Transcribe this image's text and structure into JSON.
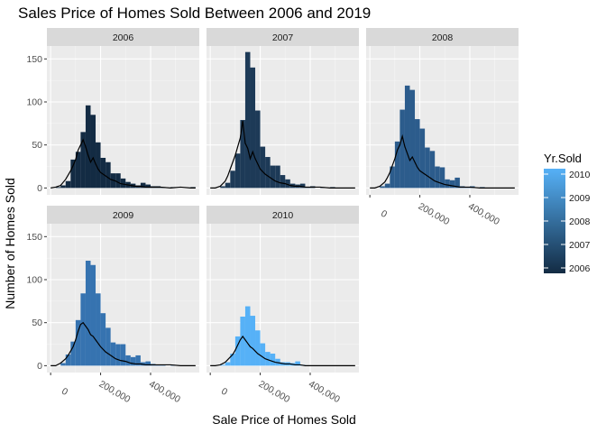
{
  "chart_data": {
    "type": "histogram",
    "title": "Sales Price of Homes Sold Between 2006 and 2019",
    "xlabel": "Sale Price of Homes Sold",
    "ylabel": "Number of Homes Sold",
    "xlim": [
      -15000,
      595000
    ],
    "ylim": [
      -8,
      165
    ],
    "x_ticks": [
      0,
      200000,
      400000
    ],
    "x_tick_labels": [
      "0",
      "200,000",
      "400,000"
    ],
    "y_ticks": [
      0,
      50,
      100,
      150
    ],
    "y_tick_labels": [
      "0",
      "50",
      "100",
      "150"
    ],
    "bin_width": 20000,
    "bin_starts": [
      0,
      20000,
      40000,
      60000,
      80000,
      100000,
      120000,
      140000,
      160000,
      180000,
      200000,
      220000,
      240000,
      260000,
      280000,
      300000,
      320000,
      340000,
      360000,
      380000,
      400000,
      420000,
      440000,
      460000,
      480000,
      500000,
      520000,
      540000,
      560000
    ],
    "legend": {
      "title": "Yr.Sold",
      "labels": [
        "2010",
        "2009",
        "2008",
        "2007",
        "2006"
      ],
      "values": [
        2010,
        2009,
        2008,
        2007,
        2006
      ],
      "position": "right",
      "gradient_low": "#132b43",
      "gradient_high": "#56b1f7"
    },
    "grid": true,
    "panels": [
      {
        "label": "2006",
        "fill": "#132b43",
        "counts": [
          0,
          1,
          3,
          8,
          33,
          42,
          65,
          96,
          85,
          53,
          35,
          30,
          17,
          17,
          11,
          7,
          5,
          3,
          6,
          4,
          2,
          2,
          1,
          0,
          1,
          0,
          0,
          0,
          1
        ],
        "density_x": [
          0,
          20000,
          40000,
          60000,
          70000,
          80000,
          90000,
          100000,
          110000,
          120000,
          130000,
          140000,
          150000,
          160000,
          170000,
          180000,
          190000,
          200000,
          220000,
          240000,
          260000,
          280000,
          300000,
          320000,
          340000,
          360000,
          380000,
          400000,
          440000,
          480000,
          520000,
          560000,
          580000
        ],
        "density_y": [
          0,
          1,
          3,
          10,
          15,
          20,
          26,
          33,
          44,
          50,
          56,
          48,
          38,
          30,
          35,
          28,
          22,
          18,
          14,
          10,
          8,
          5,
          4,
          3,
          2,
          2,
          1,
          1,
          1,
          0,
          1,
          0,
          0
        ]
      },
      {
        "label": "2007",
        "fill": "#1d3a57",
        "counts": [
          0,
          0,
          2,
          6,
          20,
          40,
          79,
          158,
          140,
          90,
          48,
          36,
          26,
          26,
          15,
          10,
          5,
          4,
          5,
          1,
          2,
          0,
          1,
          0,
          1,
          0,
          0,
          0,
          0
        ],
        "density_x": [
          0,
          20000,
          40000,
          60000,
          70000,
          80000,
          90000,
          100000,
          110000,
          120000,
          130000,
          140000,
          150000,
          160000,
          170000,
          180000,
          190000,
          200000,
          220000,
          240000,
          260000,
          280000,
          300000,
          320000,
          340000,
          360000,
          380000,
          400000,
          440000,
          480000,
          520000,
          560000,
          580000
        ],
        "density_y": [
          0,
          0,
          2,
          8,
          14,
          22,
          30,
          38,
          48,
          58,
          78,
          52,
          46,
          34,
          42,
          34,
          28,
          22,
          16,
          12,
          8,
          6,
          5,
          3,
          2,
          2,
          1,
          1,
          1,
          0,
          0,
          0,
          0
        ]
      },
      {
        "label": "2008",
        "fill": "#2c5c8c",
        "counts": [
          0,
          0,
          2,
          5,
          25,
          54,
          91,
          119,
          114,
          80,
          69,
          47,
          43,
          25,
          24,
          10,
          9,
          12,
          2,
          1,
          2,
          0,
          1,
          0,
          0,
          0,
          0,
          0,
          0
        ],
        "density_x": [
          0,
          20000,
          40000,
          60000,
          70000,
          80000,
          90000,
          100000,
          110000,
          120000,
          130000,
          140000,
          150000,
          160000,
          170000,
          180000,
          190000,
          200000,
          220000,
          240000,
          260000,
          280000,
          300000,
          320000,
          340000,
          360000,
          380000,
          400000,
          440000,
          480000,
          520000,
          560000,
          580000
        ],
        "density_y": [
          0,
          0,
          2,
          7,
          12,
          18,
          26,
          34,
          44,
          50,
          60,
          48,
          40,
          32,
          36,
          30,
          24,
          20,
          16,
          12,
          8,
          6,
          4,
          3,
          2,
          1,
          1,
          1,
          0,
          0,
          0,
          0,
          0
        ]
      },
      {
        "label": "2009",
        "fill": "#3673b0",
        "counts": [
          0,
          0,
          3,
          13,
          28,
          53,
          84,
          122,
          117,
          84,
          61,
          44,
          27,
          25,
          25,
          12,
          10,
          12,
          4,
          5,
          2,
          1,
          1,
          0,
          1,
          0,
          0,
          0,
          0
        ],
        "density_x": [
          0,
          20000,
          40000,
          60000,
          70000,
          80000,
          90000,
          100000,
          110000,
          120000,
          130000,
          140000,
          150000,
          160000,
          170000,
          180000,
          190000,
          200000,
          220000,
          240000,
          260000,
          280000,
          300000,
          320000,
          340000,
          360000,
          380000,
          400000,
          440000,
          480000,
          520000,
          560000,
          580000
        ],
        "density_y": [
          0,
          0,
          3,
          8,
          12,
          17,
          22,
          30,
          40,
          48,
          50,
          46,
          42,
          36,
          34,
          30,
          26,
          22,
          16,
          12,
          8,
          6,
          5,
          3,
          2,
          2,
          1,
          1,
          1,
          1,
          0,
          0,
          0
        ]
      },
      {
        "label": "2010",
        "fill": "#56b1f7",
        "counts": [
          0,
          0,
          1,
          4,
          14,
          34,
          57,
          69,
          58,
          41,
          26,
          16,
          14,
          8,
          4,
          4,
          3,
          5,
          1,
          0,
          0,
          0,
          0,
          0,
          0,
          0,
          0,
          0,
          0
        ],
        "density_x": [
          0,
          20000,
          40000,
          60000,
          70000,
          80000,
          90000,
          100000,
          110000,
          120000,
          130000,
          140000,
          150000,
          160000,
          170000,
          180000,
          190000,
          200000,
          220000,
          240000,
          260000,
          280000,
          300000,
          320000,
          340000,
          360000,
          380000,
          400000,
          440000,
          480000,
          520000,
          560000,
          580000
        ],
        "density_y": [
          0,
          0,
          1,
          4,
          7,
          10,
          13,
          18,
          24,
          30,
          34,
          30,
          26,
          22,
          20,
          17,
          14,
          12,
          8,
          6,
          4,
          3,
          2,
          2,
          1,
          1,
          0,
          0,
          0,
          0,
          0,
          0,
          0
        ]
      }
    ]
  }
}
